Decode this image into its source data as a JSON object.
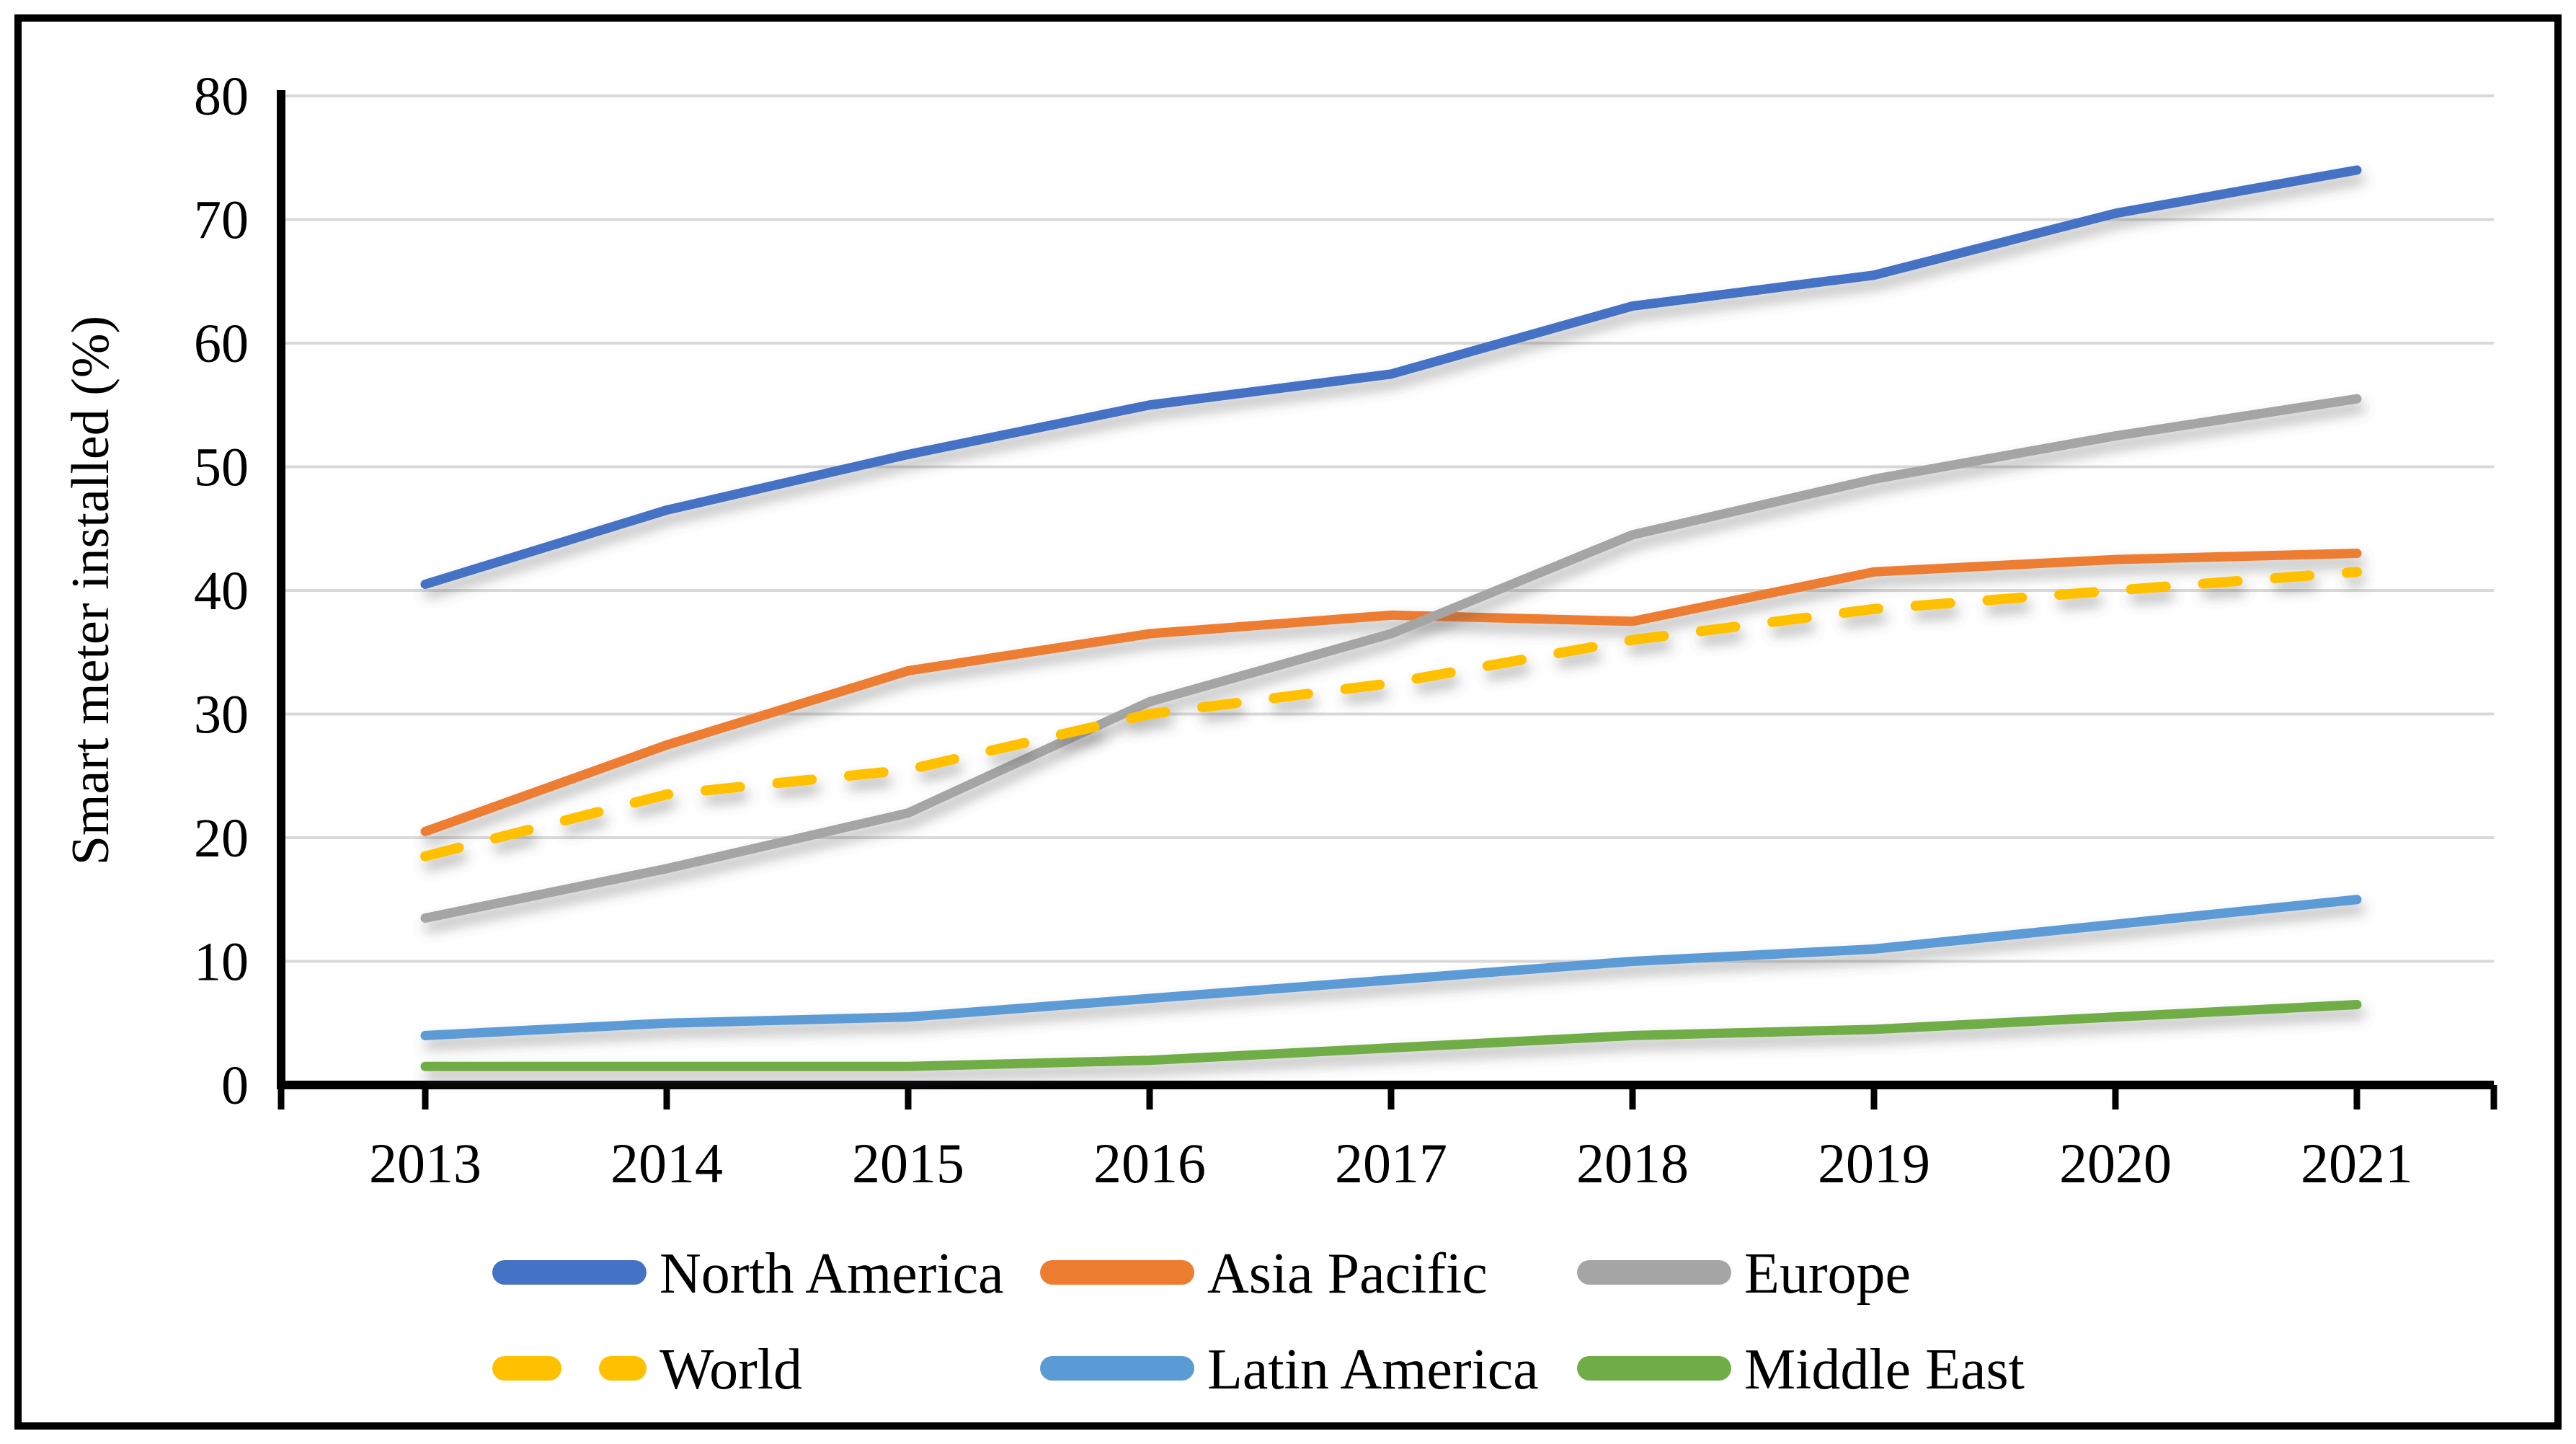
{
  "chart_data": {
    "type": "line",
    "title": "",
    "xlabel": "",
    "ylabel": "Smart meter installed (%)",
    "ylim": [
      0,
      80
    ],
    "yticks": [
      0,
      10,
      20,
      30,
      40,
      50,
      60,
      70,
      80
    ],
    "grid": "horizontal",
    "gridline_color": "#d9d9d9",
    "axis_color": "#000000",
    "categories": [
      "2013",
      "2014",
      "2015",
      "2016",
      "2017",
      "2018",
      "2019",
      "2020",
      "2021"
    ],
    "series": [
      {
        "name": "North America",
        "color": "#4472C4",
        "dashed": false,
        "values": [
          40.5,
          46.5,
          51,
          55,
          57.5,
          63,
          65.5,
          70.5,
          74
        ]
      },
      {
        "name": "Asia Pacific",
        "color": "#ED7D31",
        "dashed": false,
        "values": [
          20.5,
          27.5,
          33.5,
          36.5,
          38,
          37.5,
          41.5,
          42.5,
          43
        ]
      },
      {
        "name": "Europe",
        "color": "#A5A5A5",
        "dashed": false,
        "values": [
          13.5,
          17.5,
          22,
          31,
          36.5,
          44.5,
          49,
          52.5,
          55.5
        ]
      },
      {
        "name": "World",
        "color": "#FFC000",
        "dashed": true,
        "values": [
          18.5,
          23.5,
          25.5,
          30,
          32.5,
          36,
          38.5,
          40,
          41.5
        ]
      },
      {
        "name": "Latin America",
        "color": "#5B9BD5",
        "dashed": false,
        "values": [
          4,
          5,
          5.5,
          7,
          8.5,
          10,
          11,
          13,
          15
        ]
      },
      {
        "name": "Middle East",
        "color": "#70AD47",
        "dashed": false,
        "values": [
          1.5,
          1.5,
          1.5,
          2,
          3,
          4,
          4.5,
          5.5,
          6.5
        ]
      }
    ],
    "legend": {
      "position": "bottom",
      "rows": [
        [
          "North America",
          "Asia Pacific",
          "Europe"
        ],
        [
          "World",
          "Latin America",
          "Middle East"
        ]
      ]
    }
  }
}
